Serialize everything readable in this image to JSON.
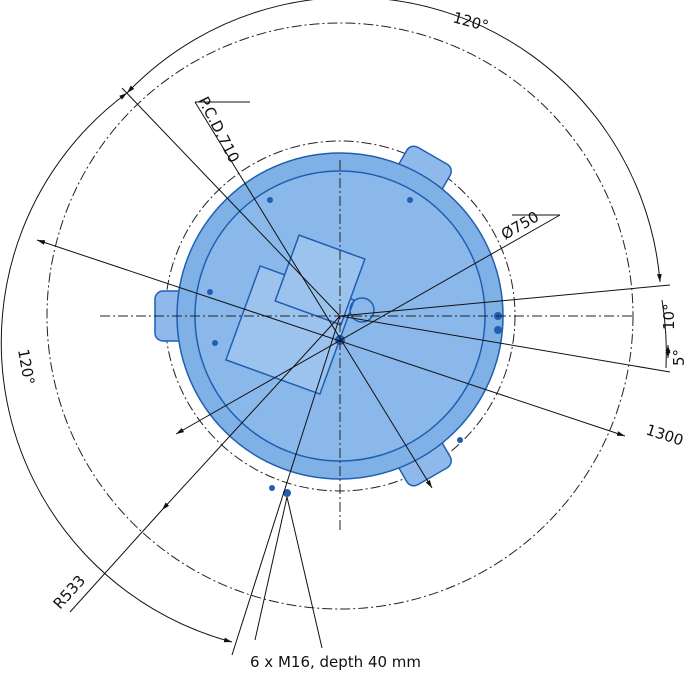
{
  "labels": {
    "angle_top": "120°",
    "pcd": "P.C.D.710",
    "diameter": "Ø750",
    "angle_10": "10°",
    "angle_5": "5°",
    "outer": "1300",
    "angle_left": "120°",
    "radius": "R533",
    "bolts": "6 x M16, depth 40 mm"
  }
}
